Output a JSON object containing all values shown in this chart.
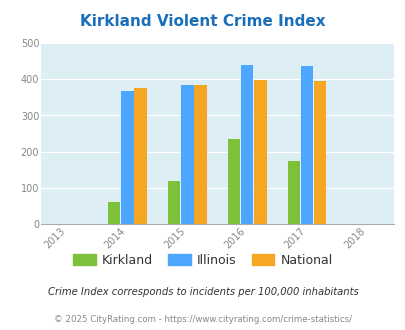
{
  "title": "Kirkland Violent Crime Index",
  "data": {
    "Kirkland": {
      "2014": 63,
      "2015": 120,
      "2016": 234,
      "2017": 176
    },
    "Illinois": {
      "2014": 368,
      "2015": 383,
      "2016": 438,
      "2017": 437
    },
    "National": {
      "2014": 376,
      "2015": 383,
      "2016": 397,
      "2017": 394
    }
  },
  "bar_colors": {
    "Kirkland": "#7dc13a",
    "Illinois": "#4da6ff",
    "National": "#f5a623"
  },
  "ylim": [
    0,
    500
  ],
  "yticks": [
    0,
    100,
    200,
    300,
    400,
    500
  ],
  "xticks": [
    2013,
    2014,
    2015,
    2016,
    2017,
    2018
  ],
  "background_color": "#ddeef5",
  "title_color": "#1a6fba",
  "title_fontsize": 11,
  "legend_labels": [
    "Kirkland",
    "Illinois",
    "National"
  ],
  "footer_line1": "Crime Index corresponds to incidents per 100,000 inhabitants",
  "footer_line2": "© 2025 CityRating.com - https://www.cityrating.com/crime-statistics/",
  "footer_color1": "#333333",
  "footer_color2": "#888888",
  "bar_width": 0.22,
  "group_centers": [
    2014,
    2015,
    2016,
    2017
  ]
}
